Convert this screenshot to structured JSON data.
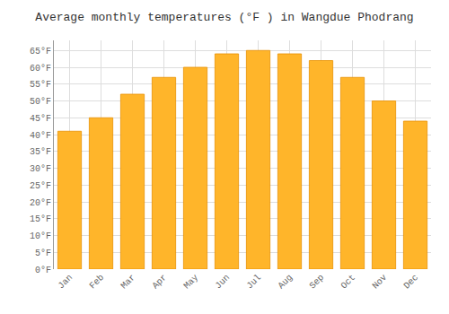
{
  "chart_data": {
    "type": "bar",
    "title": "Average monthly temperatures (°F ) in Wangdue Phodrang",
    "categories": [
      "Jan",
      "Feb",
      "Mar",
      "Apr",
      "May",
      "Jun",
      "Jul",
      "Aug",
      "Sep",
      "Oct",
      "Nov",
      "Dec"
    ],
    "values": [
      41,
      45,
      52,
      57,
      60,
      64,
      65,
      64,
      62,
      57,
      50,
      44
    ],
    "color": "#FFB52A",
    "ylim": [
      0,
      68
    ],
    "yticks": [
      {
        "value": 0,
        "label": "0°F"
      },
      {
        "value": 5,
        "label": "5°F"
      },
      {
        "value": 10,
        "label": "10°F"
      },
      {
        "value": 15,
        "label": "15°F"
      },
      {
        "value": 20,
        "label": "20°F"
      },
      {
        "value": 25,
        "label": "25°F"
      },
      {
        "value": 30,
        "label": "30°F"
      },
      {
        "value": 35,
        "label": "35°F"
      },
      {
        "value": 40,
        "label": "40°F"
      },
      {
        "value": 45,
        "label": "45°F"
      },
      {
        "value": 50,
        "label": "50°F"
      },
      {
        "value": 55,
        "label": "55°F"
      },
      {
        "value": 60,
        "label": "60°F"
      },
      {
        "value": 65,
        "label": "65°F"
      }
    ],
    "grid": true
  }
}
